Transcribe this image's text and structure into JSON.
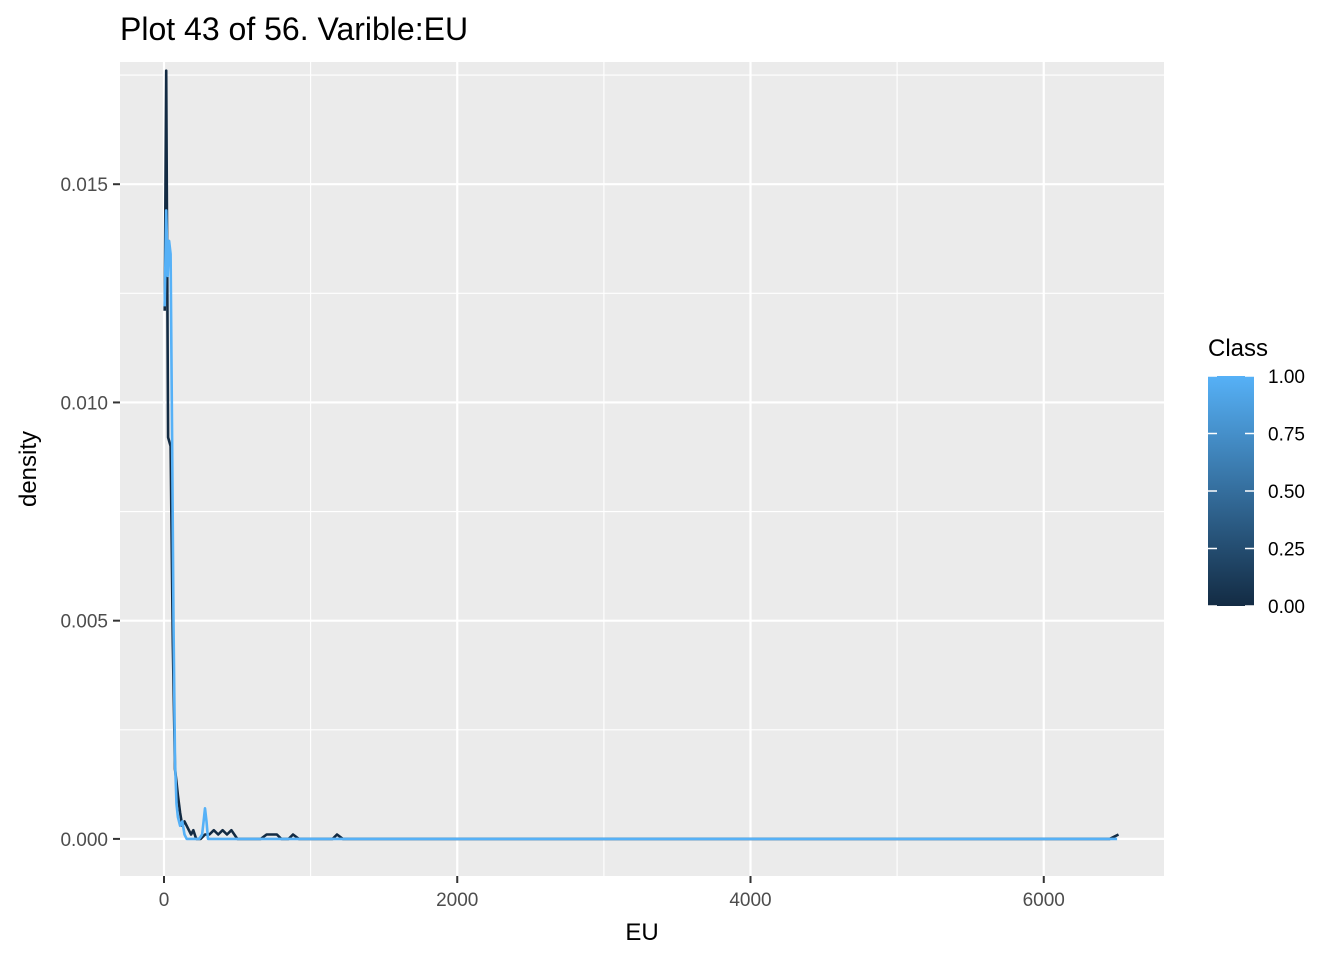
{
  "chart_data": {
    "type": "line",
    "title": "Plot 43 of 56. Varible:EU",
    "xlabel": "EU",
    "ylabel": "density",
    "xlim": [
      -300,
      6820
    ],
    "ylim": [
      -0.00085,
      0.0178
    ],
    "x_ticks": [
      0,
      2000,
      4000,
      6000
    ],
    "x_tick_labels": [
      "0",
      "2000",
      "4000",
      "6000"
    ],
    "y_ticks": [
      0.0,
      0.005,
      0.01,
      0.015
    ],
    "y_tick_labels": [
      "0.000",
      "0.005",
      "0.010",
      "0.015"
    ],
    "grid": true,
    "legend": {
      "title": "Class",
      "position": "right",
      "type": "colorbar",
      "breaks": [
        0,
        0.25,
        0.5,
        0.75,
        1.0
      ],
      "labels": [
        "0.00",
        "0.25",
        "0.50",
        "0.75",
        "1.00"
      ],
      "low_color": "#132b43",
      "high_color": "#56b1f7"
    },
    "series": [
      {
        "class_value": 0,
        "color": "#132b43",
        "x": [
          5,
          15,
          28,
          45,
          60,
          75,
          85,
          95,
          110,
          125,
          140,
          155,
          170,
          185,
          200,
          220,
          250,
          280,
          310,
          340,
          370,
          400,
          430,
          460,
          500,
          560,
          620,
          660,
          700,
          740,
          770,
          800,
          850,
          880,
          920,
          1000,
          1100,
          1150,
          1180,
          1220,
          1300,
          2000,
          3000,
          4000,
          5000,
          6000,
          6450,
          6510
        ],
        "y": [
          0.0121,
          0.0176,
          0.0092,
          0.009,
          0.0045,
          0.0016,
          0.0013,
          0.001,
          0.0006,
          0.0003,
          0.0004,
          0.0003,
          0.0002,
          0.0001,
          0.0002,
          0.0,
          0.0,
          0.0001,
          0.0001,
          0.0002,
          0.0001,
          0.0002,
          0.0001,
          0.0002,
          0.0,
          0.0,
          0.0,
          0.0,
          0.0001,
          0.0001,
          0.0001,
          0.0,
          0.0,
          0.0001,
          0.0,
          0.0,
          0.0,
          0.0,
          0.0001,
          0.0,
          0.0,
          0.0,
          0.0,
          0.0,
          0.0,
          0.0,
          0.0,
          0.0001
        ]
      },
      {
        "class_value": 1,
        "color": "#56b1f7",
        "x": [
          5,
          15,
          25,
          35,
          45,
          55,
          65,
          75,
          85,
          95,
          110,
          125,
          140,
          155,
          170,
          185,
          200,
          220,
          240,
          260,
          270,
          280,
          290,
          300,
          320,
          350,
          400,
          500,
          1000,
          2000,
          3000,
          4000,
          5000,
          6000,
          6500
        ],
        "y": [
          0.0122,
          0.0144,
          0.0129,
          0.0137,
          0.0134,
          0.0092,
          0.005,
          0.0018,
          0.0008,
          0.0005,
          0.0003,
          0.0004,
          0.0001,
          0.0,
          0.0,
          0.0,
          0.0,
          0.0,
          0.0,
          0.0001,
          0.0004,
          0.0007,
          0.0004,
          0.0,
          0.0,
          0.0,
          0.0,
          0.0,
          0.0,
          0.0,
          0.0,
          0.0,
          0.0,
          0.0,
          0.0
        ]
      }
    ]
  }
}
